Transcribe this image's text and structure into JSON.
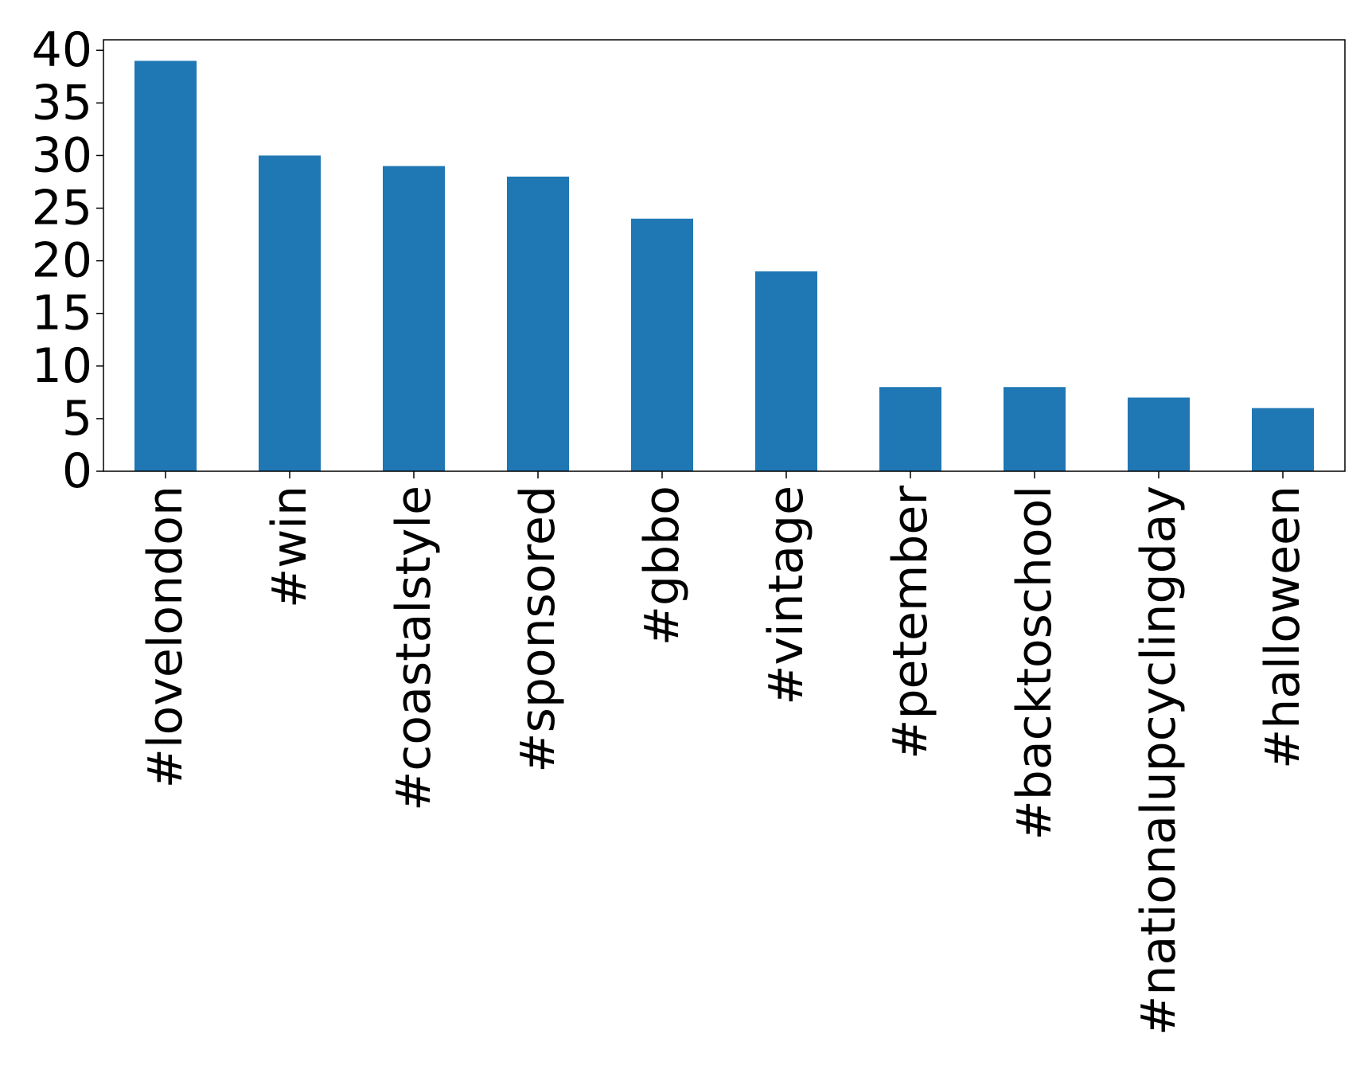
{
  "chart_data": {
    "type": "bar",
    "title": "",
    "xlabel": "",
    "ylabel": "",
    "categories": [
      "#lovelondon",
      "#win",
      "#coastalstyle",
      "#sponsored",
      "#gbbo",
      "#vintage",
      "#petember",
      "#backtoschool",
      "#nationalupcyclingday",
      "#halloween"
    ],
    "values": [
      39,
      30,
      29,
      28,
      24,
      19,
      8,
      8,
      7,
      6
    ],
    "ylim": [
      0,
      41
    ],
    "yticks": [
      0,
      5,
      10,
      15,
      20,
      25,
      30,
      35,
      40
    ],
    "grid": false,
    "legend": "none",
    "bar_color": "#1f77b4",
    "x_tick_rotation": "vertical"
  }
}
